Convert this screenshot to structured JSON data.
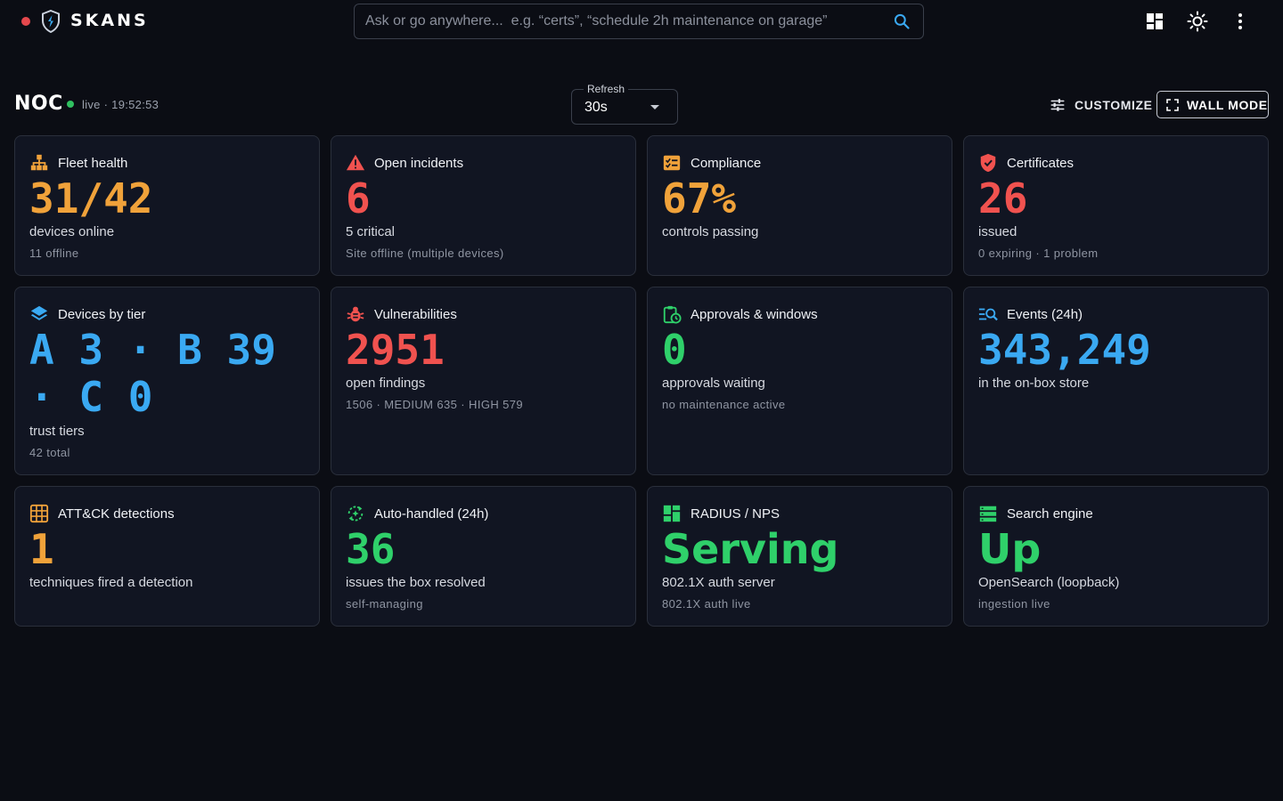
{
  "app": {
    "brand": "SKANS"
  },
  "search": {
    "placeholder": "Ask or go anywhere...  e.g. “certs”, “schedule 2h maintenance on garage”"
  },
  "page": {
    "title": "NOC",
    "live_text": "live · 19:52:53"
  },
  "refresh": {
    "label": "Refresh",
    "value": "30s"
  },
  "actions": {
    "customize": "CUSTOMIZE",
    "wall_mode": "WALL MODE"
  },
  "cards": [
    {
      "title": "Fleet health",
      "value": "31/42",
      "sub": "devices online",
      "note": "11 offline",
      "color": "#f0a23a",
      "icon": "sitemap-icon"
    },
    {
      "title": "Open incidents",
      "value": "6",
      "sub": "5 critical",
      "note": "Site offline (multiple devices)",
      "color": "#f0524f",
      "icon": "warning-icon"
    },
    {
      "title": "Compliance",
      "value": "67%",
      "sub": "controls passing",
      "note": "",
      "color": "#f0a23a",
      "icon": "checklist-icon"
    },
    {
      "title": "Certificates",
      "value": "26",
      "sub": "issued",
      "note": "0 expiring · 1 problem",
      "color": "#f0524f",
      "icon": "shield-check-icon"
    },
    {
      "title": "Devices by tier",
      "value": "A 3 · B 39 · C 0",
      "sub": "trust tiers",
      "note": "42 total",
      "color": "#3aa9f2",
      "icon": "layers-icon"
    },
    {
      "title": "Vulnerabilities",
      "value": "2951",
      "sub": "open findings",
      "note": "1506 · MEDIUM 635 · HIGH 579",
      "color": "#f0524f",
      "icon": "bug-icon"
    },
    {
      "title": "Approvals & windows",
      "value": "0",
      "sub": "approvals waiting",
      "note": "no maintenance active",
      "color": "#2fd06a",
      "icon": "clipboard-clock-icon"
    },
    {
      "title": "Events (24h)",
      "value": "343,249",
      "sub": "in the on-box store",
      "note": "",
      "color": "#3aa9f2",
      "icon": "list-search-icon"
    },
    {
      "title": "ATT&CK detections",
      "value": "1",
      "sub": "techniques fired a detection",
      "note": "",
      "color": "#f0a23a",
      "icon": "grid-icon"
    },
    {
      "title": "Auto-handled (24h)",
      "value": "36",
      "sub": "issues the box resolved",
      "note": "self-managing",
      "color": "#2fd06a",
      "icon": "auto-sync-icon"
    },
    {
      "title": "RADIUS / NPS",
      "value": "Serving",
      "sub": "802.1X auth server",
      "note": "802.1X auth live",
      "color": "#2fd06a",
      "icon": "dashboard-icon"
    },
    {
      "title": "Search engine",
      "value": "Up",
      "sub": "OpenSearch (loopback)",
      "note": "ingestion live",
      "color": "#2fd06a",
      "icon": "storage-icon"
    }
  ]
}
